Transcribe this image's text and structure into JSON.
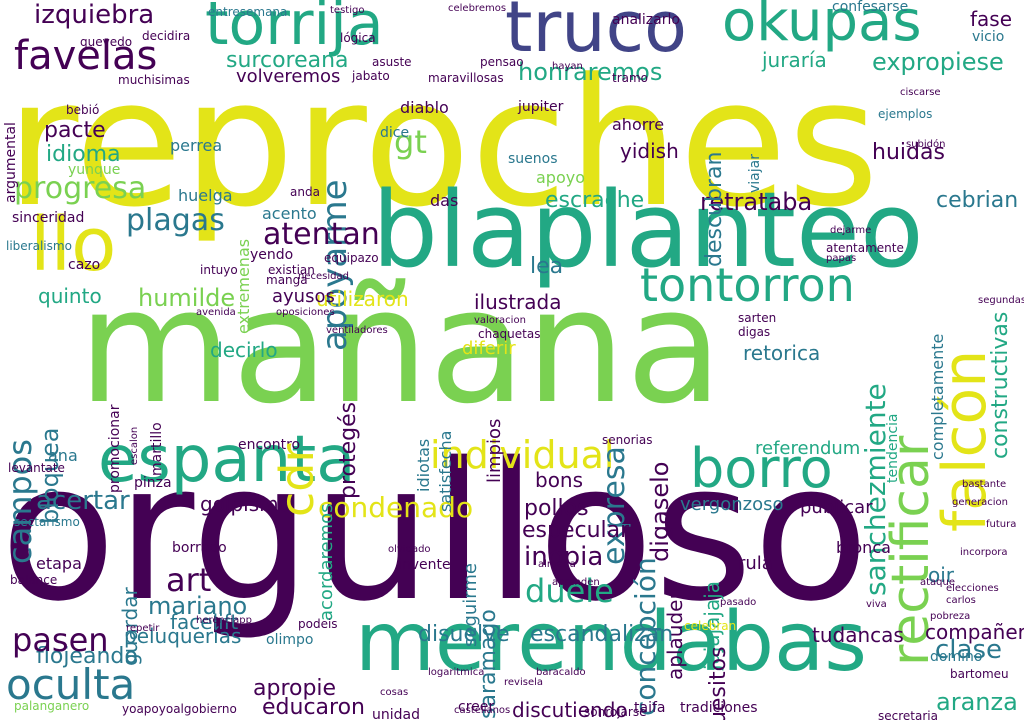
{
  "palette": {
    "yellow": "#e3e418",
    "lime": "#7ad151",
    "green": "#22a884",
    "teal": "#2a788e",
    "blue": "#414487",
    "purple": "#440154",
    "background": "#ffffff"
  },
  "words": [
    "reproches",
    "mañana",
    "orgulloso",
    "blaplanteo",
    "merendabas",
    "truco",
    "torrija",
    "okupas",
    "llo",
    "falcón",
    "espanta",
    "borro",
    "rectificar",
    "favelas",
    "izquiebra",
    "oculta",
    "individual",
    "tontorron",
    "progresa",
    "apoyarme",
    "atentan",
    "plagas",
    "humilde",
    "bloquea",
    "campos",
    "idioma",
    "pacte",
    "quinto",
    "decirlo",
    "expropiese",
    "honraremos",
    "surcoreana",
    "volveremos",
    "retrataba",
    "huidas",
    "escrache",
    "cebrian",
    "referendum",
    "sanchezmiente",
    "constructivas",
    "expresa",
    "digaselo",
    "jajajajaja",
    "concepción",
    "aplauden",
    "condenado",
    "pollos",
    "inopia",
    "especular",
    "duele",
    "saramago",
    "escandalizan",
    "disuelve",
    "discutiendo",
    "aranza",
    "compañeras",
    "clase",
    "apropie",
    "educaron",
    "flojeando",
    "peluquerías",
    "pasen",
    "art",
    "mariano",
    "facelift",
    "guardar",
    "acertar",
    "golpismo",
    "huesitos",
    "tudancas",
    "publicar",
    "vergonzoso",
    "bons",
    "rula",
    "oir",
    "retorica",
    "limpios",
    "diferir",
    "utilizaron",
    "ilustrada",
    "ayusos",
    "protegés",
    "satisfecha",
    "idiotas",
    "ana",
    "acordaremos",
    "seguirme",
    "promocionar",
    "martillo",
    "extremenas",
    "acento",
    "das",
    "descubran",
    "juraría",
    "fase",
    "vicio",
    "yidish",
    "ahorre",
    "lea",
    "gt",
    "yendo",
    "dice",
    "huelga",
    "perrea",
    "yunque",
    "argumental",
    "pinza",
    "etapa",
    "borrado",
    "encontro",
    "completamente",
    "tendencia",
    "bronca",
    "domino",
    "cdr",
    "apoyo",
    "jupiter",
    "diablo",
    "analizarlo",
    "suenos",
    "lógica",
    "asuste",
    "sinceridad",
    "liberalismo",
    "cazo",
    "bebió",
    "jabato",
    "maravillosas",
    "pensao",
    "hayan",
    "confesarse",
    "ejemplos",
    "muchisimas",
    "decidira",
    "quevedo",
    "entresemana",
    "celebremos",
    "testigo",
    "unidad",
    "creer",
    "taifa",
    "tradiciones",
    "secretaria",
    "bartomeu",
    "incorpora",
    "ataque",
    "pobreza",
    "escalon",
    "balance",
    "repetir",
    "olimpo",
    "herenciapp",
    "podeis",
    "invente",
    "olvidado",
    "sectarismo",
    "palanganero",
    "yoapoyoalgobierno",
    "levantate",
    "lloc",
    "tramo",
    "viajar",
    "ciscarse",
    "atentamente",
    "dejarme",
    "papas",
    "manga",
    "anda",
    "equipazo",
    "necesidad",
    "intuyo",
    "existian",
    "avenida",
    "oposiciones",
    "ventiladores",
    "chaquetas",
    "valoracion",
    "sarten",
    "digas",
    "senorias",
    "celebran",
    "aprenden",
    "almeria",
    "castellanos",
    "sonrojarse",
    "revisela",
    "baracaldo",
    "logaritmica",
    "cosas",
    "segundas",
    "generacion",
    "bastante",
    "elecciones",
    "carlos",
    "futura",
    "subidón",
    "viva",
    "pasado"
  ]
}
